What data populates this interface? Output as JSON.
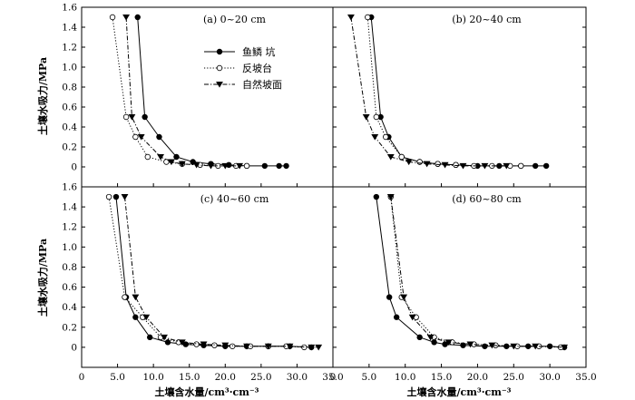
{
  "chart_data": {
    "type": "line",
    "shared": {
      "xlabel": "土壤含水量/cm³·cm⁻³",
      "ylabel": "土壤水吸力/MPa",
      "xlim": [
        0,
        35
      ],
      "ylim": [
        -0.2,
        1.6
      ],
      "xticks": [
        "0",
        "5.0",
        "10.0",
        "15.0",
        "20.0",
        "25.0",
        "30.0",
        "35.0"
      ],
      "yticks": [
        "0",
        "0.2",
        "0.4",
        "0.6",
        "0.8",
        "1.0",
        "1.2",
        "1.4",
        "1.6"
      ],
      "legend": {
        "placement": "inside panel (a), upper-middle",
        "entries": [
          "鱼鳞 坑",
          "反坡台",
          "自然坡面"
        ]
      },
      "styles": {
        "鱼鳞 坑": {
          "line": "solid",
          "marker": "filled-circle",
          "color": "#000000"
        },
        "反坡台": {
          "line": "dotted",
          "marker": "open-circle",
          "color": "#000000"
        },
        "自然坡面": {
          "line": "dashdot",
          "marker": "filled-triangle-down",
          "color": "#000000"
        }
      }
    },
    "panels": [
      {
        "title": "(a) 0~20 cm",
        "series": [
          {
            "name": "鱼鳞 坑",
            "x": [
              7.8,
              8.8,
              10.8,
              13.2,
              15.5,
              18.0,
              20.5,
              23.0,
              25.5,
              27.5,
              28.5
            ],
            "y": [
              1.5,
              0.5,
              0.3,
              0.1,
              0.05,
              0.03,
              0.02,
              0.01,
              0.01,
              0.01,
              0.01
            ]
          },
          {
            "name": "反坡台",
            "x": [
              4.3,
              6.2,
              7.5,
              9.2,
              11.8,
              14.0,
              16.5,
              19.0,
              21.5,
              23.0
            ],
            "y": [
              1.5,
              0.5,
              0.3,
              0.1,
              0.05,
              0.03,
              0.02,
              0.01,
              0.01,
              0.01
            ]
          },
          {
            "name": "自然坡面",
            "x": [
              6.2,
              7.0,
              8.3,
              11.0,
              12.5,
              14.0,
              16.0,
              18.0,
              20.0,
              22.0
            ],
            "y": [
              1.5,
              0.5,
              0.3,
              0.1,
              0.05,
              0.03,
              0.02,
              0.01,
              0.01,
              0.01
            ]
          }
        ]
      },
      {
        "title": "(b) 20~40 cm",
        "series": [
          {
            "name": "鱼鳞 坑",
            "x": [
              5.3,
              6.6,
              7.7,
              9.5,
              12.0,
              14.5,
              17.0,
              20.0,
              23.0,
              26.0,
              28.0,
              29.5
            ],
            "y": [
              1.5,
              0.5,
              0.3,
              0.1,
              0.05,
              0.03,
              0.02,
              0.01,
              0.01,
              0.01,
              0.01,
              0.01
            ]
          },
          {
            "name": "反坡台",
            "x": [
              4.8,
              6.0,
              7.3,
              9.5,
              12.0,
              14.5,
              17.0,
              19.5,
              22.0,
              24.5,
              26.0
            ],
            "y": [
              1.5,
              0.5,
              0.3,
              0.1,
              0.05,
              0.03,
              0.02,
              0.01,
              0.01,
              0.01,
              0.01
            ]
          },
          {
            "name": "自然坡面",
            "x": [
              2.5,
              4.6,
              5.8,
              8.0,
              10.5,
              13.0,
              15.5,
              18.0,
              21.0,
              24.0
            ],
            "y": [
              1.5,
              0.5,
              0.3,
              0.1,
              0.05,
              0.03,
              0.02,
              0.01,
              0.01,
              0.01
            ]
          }
        ]
      },
      {
        "title": "(c) 40~60 cm",
        "series": [
          {
            "name": "鱼鳞 坑",
            "x": [
              4.8,
              6.2,
              7.5,
              9.5,
              12.0,
              14.5,
              17.0,
              20.0,
              23.0,
              26.0,
              29.0,
              32.0
            ],
            "y": [
              1.5,
              0.5,
              0.3,
              0.1,
              0.05,
              0.03,
              0.02,
              0.01,
              0.01,
              0.01,
              0.01,
              0.0
            ]
          },
          {
            "name": "反坡台",
            "x": [
              3.8,
              6.0,
              8.5,
              11.0,
              13.5,
              16.0,
              18.5,
              21.0,
              23.5,
              26.0,
              28.5,
              31.0
            ],
            "y": [
              1.5,
              0.5,
              0.3,
              0.1,
              0.05,
              0.03,
              0.02,
              0.01,
              0.01,
              0.01,
              0.01,
              0.0
            ]
          },
          {
            "name": "自然坡面",
            "x": [
              6.0,
              7.5,
              9.0,
              11.5,
              14.0,
              17.0,
              20.0,
              23.0,
              26.0,
              29.0,
              32.0,
              33.0
            ],
            "y": [
              1.5,
              0.5,
              0.3,
              0.1,
              0.05,
              0.03,
              0.02,
              0.01,
              0.01,
              0.01,
              0.0,
              0.0
            ]
          }
        ]
      },
      {
        "title": "(d) 60~80 cm",
        "series": [
          {
            "name": "鱼鳞 坑",
            "x": [
              6.0,
              7.8,
              8.8,
              12.0,
              14.0,
              15.5,
              18.0,
              21.0,
              24.0,
              27.0,
              30.0,
              32.0
            ],
            "y": [
              1.5,
              0.5,
              0.3,
              0.1,
              0.05,
              0.03,
              0.02,
              0.01,
              0.01,
              0.01,
              0.01,
              0.0
            ]
          },
          {
            "name": "反坡台",
            "x": [
              8.0,
              9.5,
              11.5,
              14.0,
              16.5,
              19.5,
              22.5,
              25.5,
              28.5,
              31.5
            ],
            "y": [
              1.5,
              0.5,
              0.3,
              0.1,
              0.05,
              0.03,
              0.02,
              0.01,
              0.01,
              0.0
            ]
          },
          {
            "name": "自然坡面",
            "x": [
              8.0,
              9.8,
              11.0,
              13.5,
              16.0,
              19.0,
              22.0,
              25.0,
              28.0,
              32.0
            ],
            "y": [
              1.5,
              0.5,
              0.3,
              0.1,
              0.05,
              0.03,
              0.02,
              0.01,
              0.01,
              0.0
            ]
          }
        ]
      }
    ]
  }
}
